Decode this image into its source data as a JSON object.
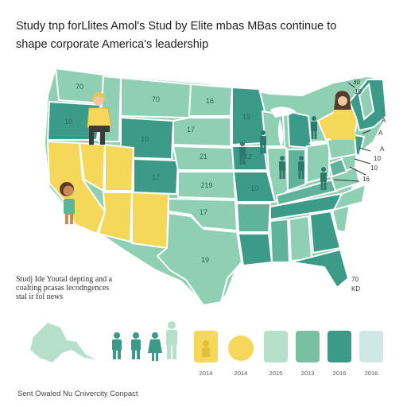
{
  "title": {
    "line1": "Study tnp forLlites Amol's Stud by Elite mbas MBas continue to",
    "line2": "shape corporate America's leadership"
  },
  "note": {
    "line1": "Studj Ide  Youtal depting and a",
    "line2": "coalting pcasas lecodngences",
    "line3": "stal ir fol news"
  },
  "footer": "Sent Owaled Nu Cnivercity Conpact",
  "state_labels": [
    {
      "id": "wa",
      "text": "70"
    },
    {
      "id": "or",
      "text": "10"
    },
    {
      "id": "mt",
      "text": "70"
    },
    {
      "id": "wy",
      "text": "10"
    },
    {
      "id": "nd",
      "text": "16"
    },
    {
      "id": "sd",
      "text": "17"
    },
    {
      "id": "ne",
      "text": "21"
    },
    {
      "id": "co",
      "text": "17"
    },
    {
      "id": "ks",
      "text": "219"
    },
    {
      "id": "ok",
      "text": "17"
    },
    {
      "id": "tx",
      "text": "19"
    },
    {
      "id": "mn",
      "text": "19"
    },
    {
      "id": "mo",
      "text": "10"
    },
    {
      "id": "ia",
      "text": "12"
    }
  ],
  "side_labels": [
    {
      "id": "ne1",
      "text": "30"
    },
    {
      "id": "ne2",
      "text": "10"
    },
    {
      "id": "ne3",
      "text": "A"
    },
    {
      "id": "ne4",
      "text": "A"
    },
    {
      "id": "ne5",
      "text": "A"
    },
    {
      "id": "ne6",
      "text": "10"
    },
    {
      "id": "ne7",
      "text": "10"
    },
    {
      "id": "ne8",
      "text": "16"
    },
    {
      "id": "se1",
      "text": "70"
    },
    {
      "id": "se2",
      "text": "KD"
    }
  ],
  "legend": {
    "labels": [
      "2014",
      "2014",
      "2015",
      "2013",
      "2016",
      "2016"
    ],
    "colors": [
      "#f5d759",
      "#f5d759",
      "#b7e0cc",
      "#79c0a3",
      "#3b9b88",
      "#cfe8e6"
    ]
  },
  "colors": {
    "teal_dark": "#3b9b88",
    "teal": "#5fb39a",
    "teal_light": "#8fcfb3",
    "mint": "#b7e0cc",
    "yellow": "#f5d759"
  }
}
